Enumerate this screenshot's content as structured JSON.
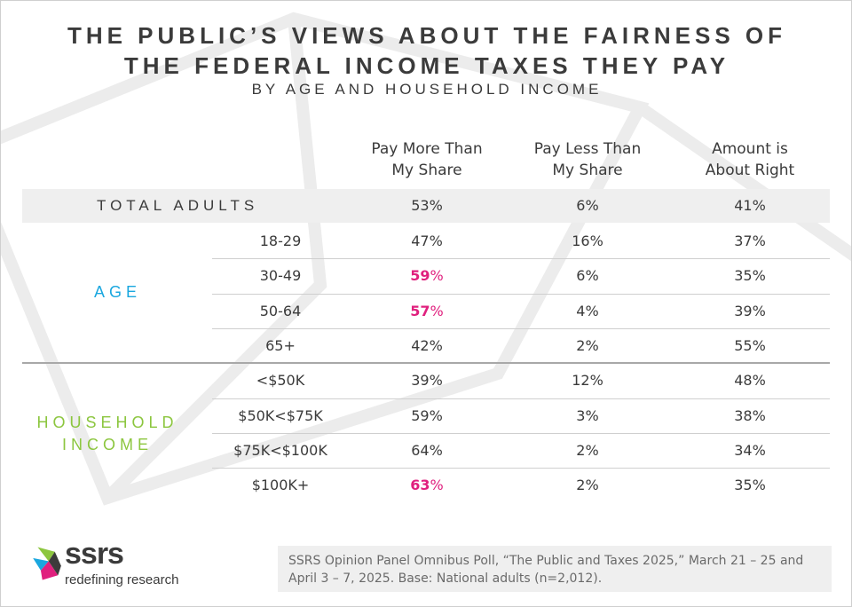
{
  "title_line1": "THE PUBLIC’S VIEWS ABOUT THE FAIRNESS OF",
  "title_line2": "THE FEDERAL INCOME TAXES THEY PAY",
  "subtitle": "BY AGE AND HOUSEHOLD INCOME",
  "columns": [
    {
      "line1": "Pay More Than",
      "line2": "My Share"
    },
    {
      "line1": "Pay Less Than",
      "line2": "My Share"
    },
    {
      "line1": "Amount is",
      "line2": "About Right"
    }
  ],
  "total": {
    "label": "TOTAL ADULTS",
    "values": [
      "53%",
      "6%",
      "41%"
    ]
  },
  "groups": {
    "age_label": "AGE",
    "income_label_line1": "HOUSEHOLD",
    "income_label_line2": "INCOME"
  },
  "highlight_color": "#e0207e",
  "age_color": "#1aa7df",
  "income_color": "#8cc63f",
  "chart_data": {
    "type": "table",
    "title": "THE PUBLIC’S VIEWS ABOUT THE FAIRNESS OF THE FEDERAL INCOME TAXES THEY PAY",
    "subtitle": "BY AGE AND HOUSEHOLD INCOME",
    "columns": [
      "Pay More Than My Share",
      "Pay Less Than My Share",
      "Amount is About Right"
    ],
    "rows": [
      {
        "group": "AGE",
        "label": "18-29",
        "values": [
          "47",
          "16%",
          "37%"
        ],
        "unit0": "%",
        "highlight": false
      },
      {
        "group": "AGE",
        "label": "30-49",
        "values": [
          "59",
          "6%",
          "35%"
        ],
        "unit0": "%",
        "highlight": true
      },
      {
        "group": "AGE",
        "label": "50-64",
        "values": [
          "57",
          "4%",
          "39%"
        ],
        "unit0": "%",
        "highlight": true
      },
      {
        "group": "AGE",
        "label": "65+",
        "values": [
          "42",
          "2%",
          "55%"
        ],
        "unit0": "%",
        "highlight": false
      },
      {
        "group": "HOUSEHOLD INCOME",
        "label": "<$50K",
        "values": [
          "39",
          "12%",
          "48%"
        ],
        "unit0": "%",
        "highlight": false
      },
      {
        "group": "HOUSEHOLD INCOME",
        "label": "$50K<$75K",
        "values": [
          "59",
          "3%",
          "38%"
        ],
        "unit0": "%",
        "highlight": false
      },
      {
        "group": "HOUSEHOLD INCOME",
        "label": "$75K<$100K",
        "values": [
          "64",
          "2%",
          "34%"
        ],
        "unit0": "%",
        "highlight": false
      },
      {
        "group": "HOUSEHOLD INCOME",
        "label": "$100K+",
        "values": [
          "63",
          "2%",
          "35%"
        ],
        "unit0": "%",
        "highlight": true
      }
    ]
  },
  "source": "SSRS Opinion Panel Omnibus Poll, “The Public and Taxes 2025,” March 21 – 25 and April 3 – 7, 2025. Base: National adults (n=2,012).",
  "logo": {
    "word": "ssrs",
    "tagline": "redefining research"
  }
}
